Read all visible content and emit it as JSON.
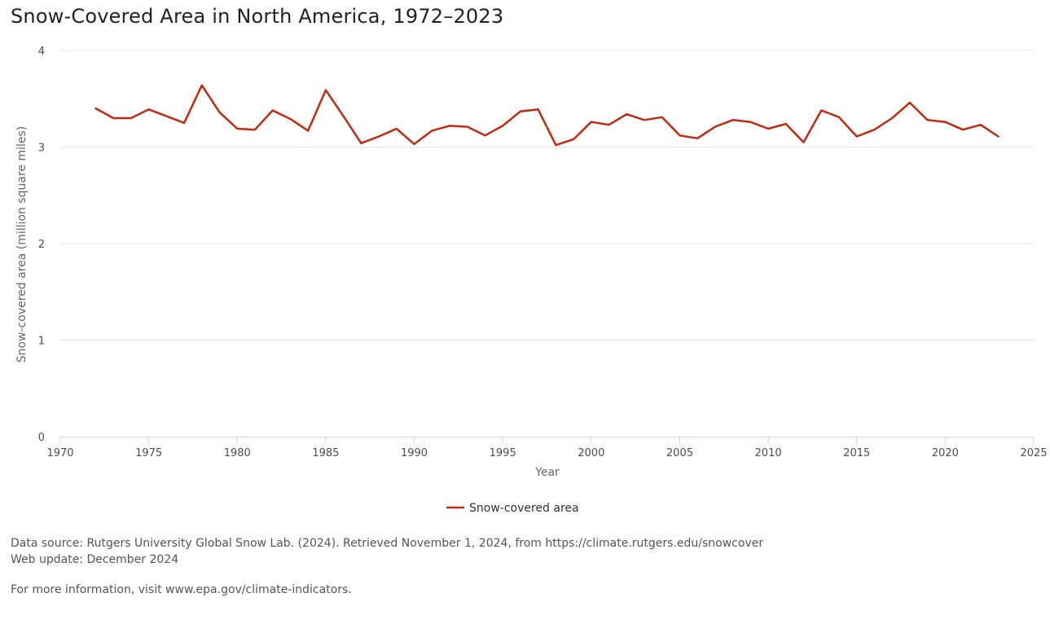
{
  "chart_data": {
    "type": "line",
    "title": "Snow-Covered Area in North America, 1972–2023",
    "xlabel": "Year",
    "ylabel": "Snow-covered area (million square miles)",
    "xlim": [
      1970,
      2025
    ],
    "ylim": [
      0,
      4
    ],
    "x_ticks": [
      1970,
      1975,
      1980,
      1985,
      1990,
      1995,
      2000,
      2005,
      2010,
      2015,
      2020,
      2025
    ],
    "y_ticks": [
      0,
      1,
      2,
      3,
      4
    ],
    "grid": "horizontal",
    "legend": "bottom-center",
    "series": [
      {
        "name": "Snow-covered area",
        "color": "#c12a0f",
        "x": [
          1972,
          1973,
          1974,
          1975,
          1976,
          1977,
          1978,
          1979,
          1980,
          1981,
          1982,
          1983,
          1984,
          1985,
          1986,
          1987,
          1988,
          1989,
          1990,
          1991,
          1992,
          1993,
          1994,
          1995,
          1996,
          1997,
          1998,
          1999,
          2000,
          2001,
          2002,
          2003,
          2004,
          2005,
          2006,
          2007,
          2008,
          2009,
          2010,
          2011,
          2012,
          2013,
          2014,
          2015,
          2016,
          2017,
          2018,
          2019,
          2020,
          2021,
          2022,
          2023
        ],
        "values": [
          3.4,
          3.3,
          3.3,
          3.39,
          3.32,
          3.25,
          3.64,
          3.36,
          3.19,
          3.18,
          3.38,
          3.29,
          3.17,
          3.59,
          3.32,
          3.04,
          3.11,
          3.19,
          3.03,
          3.17,
          3.22,
          3.21,
          3.12,
          3.22,
          3.37,
          3.39,
          3.02,
          3.08,
          3.26,
          3.23,
          3.34,
          3.28,
          3.31,
          3.12,
          3.09,
          3.21,
          3.28,
          3.26,
          3.19,
          3.24,
          3.05,
          3.38,
          3.31,
          3.11,
          3.18,
          3.3,
          3.46,
          3.28,
          3.26,
          3.18,
          3.23,
          3.11
        ]
      }
    ]
  },
  "footer": {
    "source": "Data source: Rutgers University Global Snow Lab. (2024). Retrieved November 1, 2024, from https://climate.rutgers.edu/snowcover",
    "update": "Web update: December 2024",
    "more_info": "For more information, visit www.epa.gov/climate-indicators."
  }
}
